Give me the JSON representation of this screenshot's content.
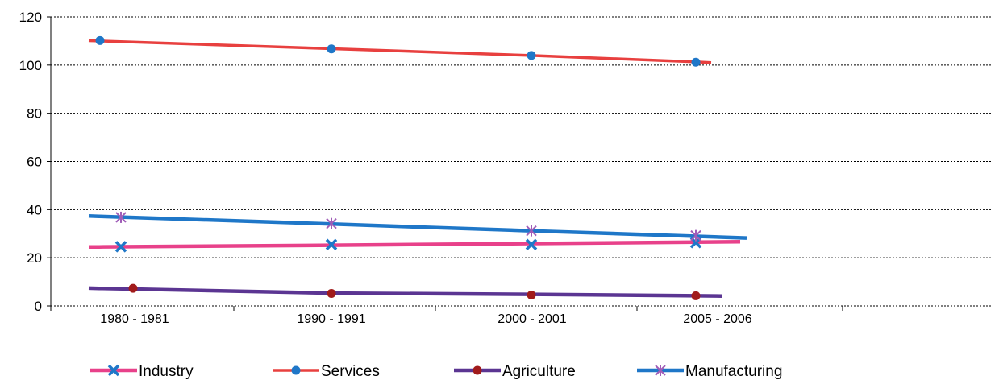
{
  "chart_data": {
    "type": "line",
    "categories": [
      "1980  - 1981",
      "1990  - 1991",
      "2000  - 2001",
      "2005  - 2006"
    ],
    "ylim": [
      0,
      120
    ],
    "yticks": [
      0,
      20,
      40,
      60,
      80,
      100,
      120
    ],
    "grid": true,
    "legend_position": "bottom",
    "series": [
      {
        "name": "Industry",
        "color": "#E8418A",
        "marker": "x",
        "marker_color": "#1F77C8",
        "line_values": [
          24.5,
          25.2,
          25.9,
          26.5
        ],
        "values": [
          24.6,
          25.5,
          25.5,
          26.3
        ]
      },
      {
        "name": "Services",
        "color": "#E8403F",
        "marker": "dot",
        "marker_color": "#1F77C8",
        "line_values": [
          110.0,
          106.8,
          104.0,
          101.3
        ],
        "values": [
          110.2,
          106.7,
          104.0,
          101.2
        ]
      },
      {
        "name": "Agriculture",
        "color": "#5B3592",
        "marker": "dot",
        "marker_color": "#A11B1B",
        "line_values": [
          7.3,
          5.3,
          4.8,
          4.2
        ],
        "values": [
          7.3,
          5.2,
          4.5,
          4.2
        ]
      },
      {
        "name": "Manufacturing",
        "color": "#1F77C8",
        "marker": "star",
        "marker_color": "#A05DB8",
        "line_values": [
          37.2,
          34.0,
          31.2,
          28.9
        ],
        "values": [
          36.8,
          34.2,
          31.2,
          29.2
        ]
      }
    ]
  }
}
